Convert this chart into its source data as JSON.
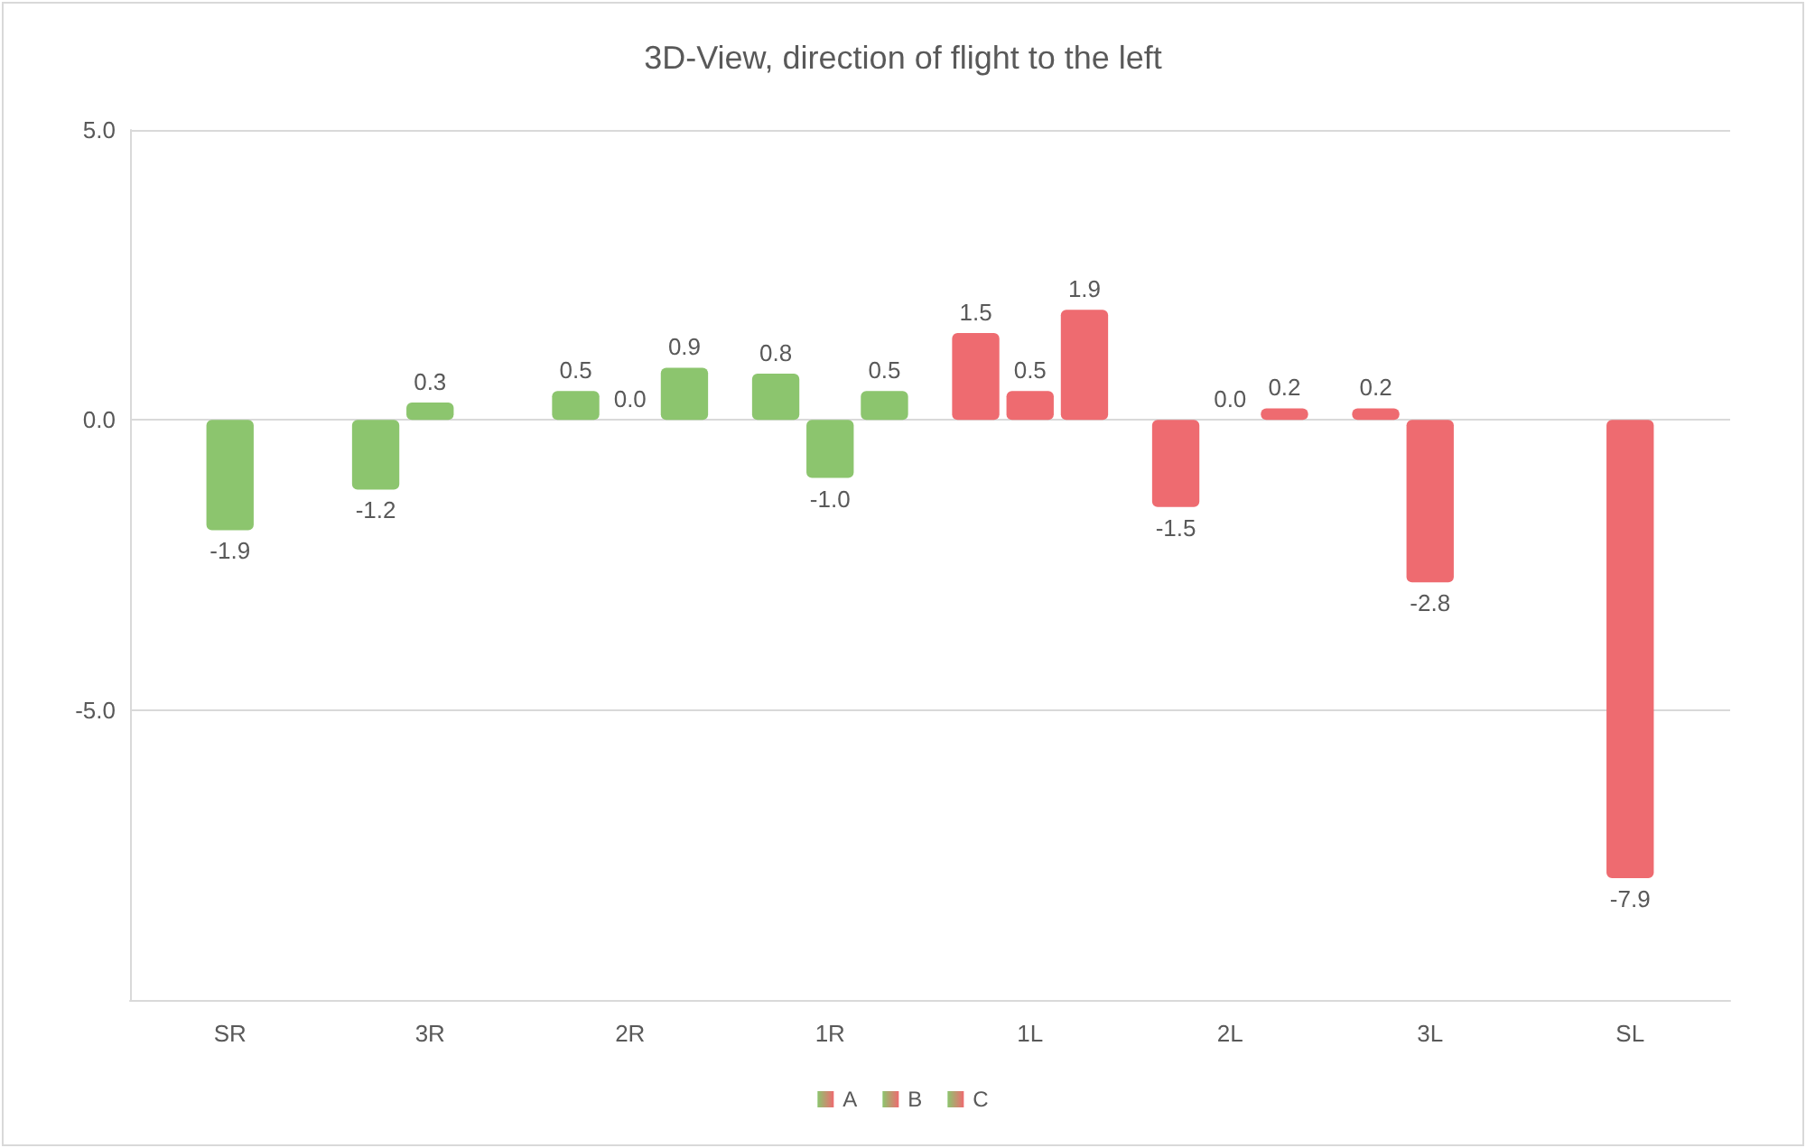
{
  "chart_data": {
    "type": "bar",
    "title": "3D-View, direction of flight to the left",
    "categories": [
      "SR",
      "3R",
      "2R",
      "1R",
      "1L",
      "2L",
      "3L",
      "SL"
    ],
    "series": [
      {
        "name": "A",
        "values": [
          null,
          -1.2,
          0.5,
          0.8,
          1.5,
          -1.5,
          0.2,
          null
        ],
        "value_labels": [
          null,
          "-1.2",
          "0.5",
          "0.8",
          "1.5",
          "-1.5",
          "0.2",
          null
        ],
        "colors": [
          null,
          "#8cc56e",
          "#8cc56e",
          "#8cc56e",
          "#ee6b70",
          "#ee6b70",
          "#ee6b70",
          null
        ]
      },
      {
        "name": "B",
        "values": [
          -1.9,
          0.3,
          0,
          -1,
          0.5,
          0,
          -2.8,
          -7.9
        ],
        "value_labels": [
          "-1.9",
          "0.3",
          "0.0",
          "-1.0",
          "0.5",
          "0.0",
          "-2.8",
          "-7.9"
        ],
        "colors": [
          "#8cc56e",
          "#8cc56e",
          "#8cc56e",
          "#8cc56e",
          "#ee6b70",
          "#ee6b70",
          "#ee6b70",
          "#ee6b70"
        ]
      },
      {
        "name": "C",
        "values": [
          null,
          null,
          0.9,
          0.5,
          1.9,
          0.2,
          null,
          null
        ],
        "value_labels": [
          null,
          null,
          "0.9",
          "0.5",
          "1.9",
          "0.2",
          null,
          null
        ],
        "colors": [
          null,
          null,
          "#8cc56e",
          "#8cc56e",
          "#ee6b70",
          "#ee6b70",
          null,
          null
        ]
      }
    ],
    "ylim": [
      -10,
      5
    ],
    "yticks": [
      {
        "value": -5,
        "label": "-5.0"
      },
      {
        "value": 0,
        "label": "0.0"
      },
      {
        "value": 5,
        "label": "5.0"
      }
    ],
    "grid": "y",
    "legend": "bottom"
  }
}
